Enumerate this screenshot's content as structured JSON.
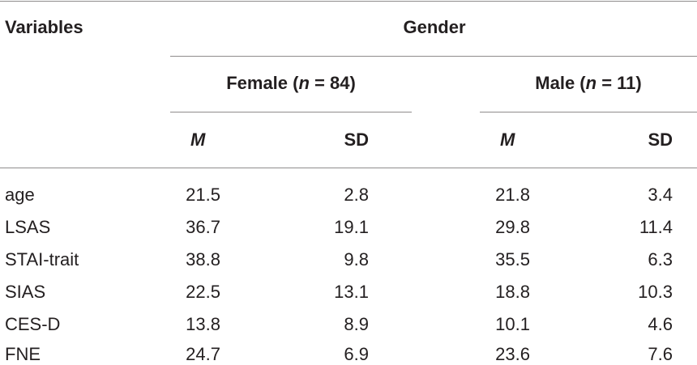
{
  "table": {
    "variables_header": "Variables",
    "group_header": "Gender",
    "groups": [
      {
        "label_pre": "Female (",
        "label_n": "n",
        "label_post": " = 84)"
      },
      {
        "label_pre": "Male (",
        "label_n": "n",
        "label_post": " = 11)"
      }
    ],
    "stat_headers": {
      "mean": "M",
      "sd": "SD"
    },
    "rows": [
      {
        "variable": "age",
        "female_m": "21.5",
        "female_sd": "2.8",
        "male_m": "21.8",
        "male_sd": "3.4"
      },
      {
        "variable": "LSAS",
        "female_m": "36.7",
        "female_sd": "19.1",
        "male_m": "29.8",
        "male_sd": "11.4"
      },
      {
        "variable": "STAI-trait",
        "female_m": "38.8",
        "female_sd": "9.8",
        "male_m": "35.5",
        "male_sd": "6.3"
      },
      {
        "variable": "SIAS",
        "female_m": "22.5",
        "female_sd": "13.1",
        "male_m": "18.8",
        "male_sd": "10.3"
      },
      {
        "variable": "CES-D",
        "female_m": "13.8",
        "female_sd": "8.9",
        "male_m": "10.1",
        "male_sd": "4.6"
      },
      {
        "variable": "FNE",
        "female_m": "24.7",
        "female_sd": "6.9",
        "male_m": "23.6",
        "male_sd": "7.6"
      }
    ]
  }
}
